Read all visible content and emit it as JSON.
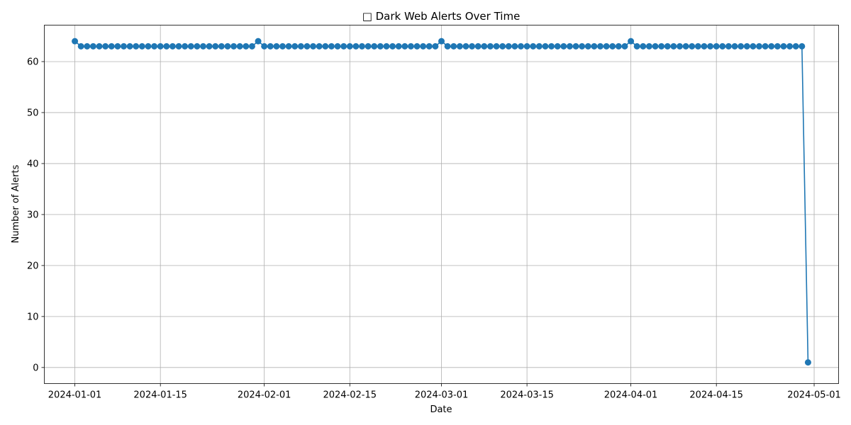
{
  "chart_data": {
    "type": "line",
    "title": "□ Dark Web Alerts Over Time",
    "xlabel": "Date",
    "ylabel": "Number of Alerts",
    "x_start": "2024-01-01",
    "x_end": "2024-04-30",
    "xlim": [
      "2023-12-27",
      "2024-05-05"
    ],
    "ylim": [
      -3.15,
      67.15
    ],
    "x_ticks": [
      "2024-01-01",
      "2024-01-15",
      "2024-02-01",
      "2024-02-15",
      "2024-03-01",
      "2024-03-15",
      "2024-04-01",
      "2024-04-15",
      "2024-05-01"
    ],
    "y_ticks": [
      0,
      10,
      20,
      30,
      40,
      50,
      60
    ],
    "grid": true,
    "color": "#1f77b4",
    "series": [
      {
        "values": [
          64,
          63,
          63,
          63,
          63,
          63,
          63,
          63,
          63,
          63,
          63,
          63,
          63,
          63,
          63,
          63,
          63,
          63,
          63,
          63,
          63,
          63,
          63,
          63,
          63,
          63,
          63,
          63,
          63,
          63,
          64,
          63,
          63,
          63,
          63,
          63,
          63,
          63,
          63,
          63,
          63,
          63,
          63,
          63,
          63,
          63,
          63,
          63,
          63,
          63,
          63,
          63,
          63,
          63,
          63,
          63,
          63,
          63,
          63,
          63,
          64,
          63,
          63,
          63,
          63,
          63,
          63,
          63,
          63,
          63,
          63,
          63,
          63,
          63,
          63,
          63,
          63,
          63,
          63,
          63,
          63,
          63,
          63,
          63,
          63,
          63,
          63,
          63,
          63,
          63,
          63,
          64,
          63,
          63,
          63,
          63,
          63,
          63,
          63,
          63,
          63,
          63,
          63,
          63,
          63,
          63,
          63,
          63,
          63,
          63,
          63,
          63,
          63,
          63,
          63,
          63,
          63,
          63,
          63,
          63,
          1
        ]
      }
    ]
  }
}
